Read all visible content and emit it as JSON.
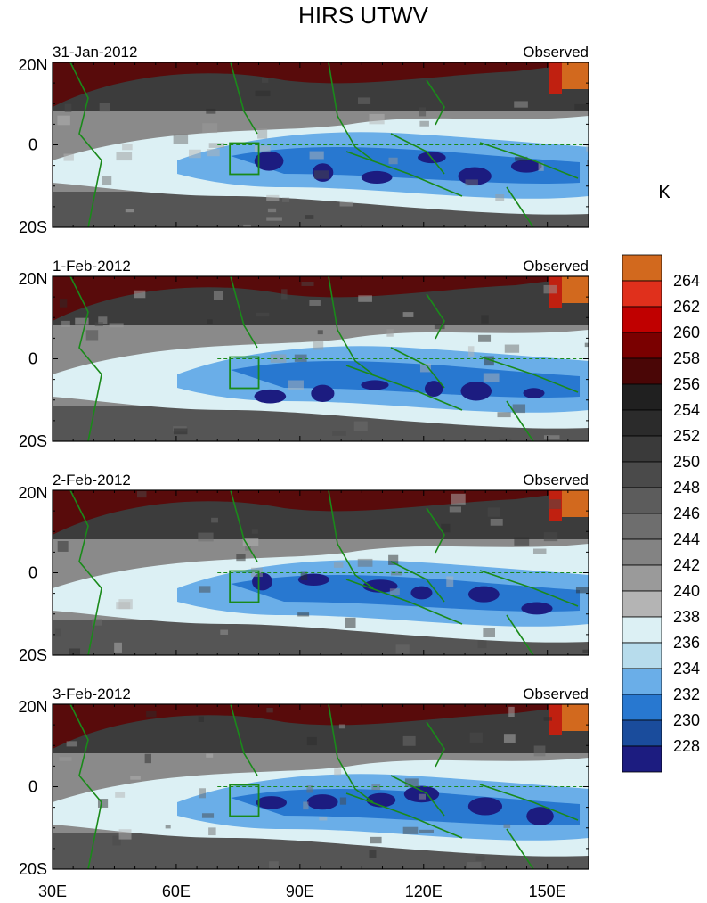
{
  "title": "HIRS UTWV",
  "panels": [
    {
      "date": "31-Jan-2012",
      "label": "Observed"
    },
    {
      "date": "1-Feb-2012",
      "label": "Observed"
    },
    {
      "date": "2-Feb-2012",
      "label": "Observed"
    },
    {
      "date": "3-Feb-2012",
      "label": "Observed"
    }
  ],
  "lat_ticks": [
    "20N",
    "0",
    "20S"
  ],
  "lon_ticks": [
    "30E",
    "60E",
    "90E",
    "120E",
    "150E"
  ],
  "colorbar": {
    "unit": "K",
    "levels": [
      "264",
      "262",
      "260",
      "258",
      "256",
      "254",
      "252",
      "250",
      "248",
      "246",
      "244",
      "242",
      "240",
      "238",
      "236",
      "234",
      "232",
      "230",
      "228"
    ],
    "colors": [
      "#d2691e",
      "#e0301c",
      "#c00000",
      "#7a0000",
      "#4a0606",
      "#202020",
      "#2b2b2b",
      "#3a3a3a",
      "#4a4a4a",
      "#5c5c5c",
      "#6e6e6e",
      "#838383",
      "#9a9a9a",
      "#b4b4b4",
      "#dcf0f4",
      "#b7dcec",
      "#6aaee8",
      "#2878d0",
      "#1a4c9c",
      "#1c1c80"
    ]
  },
  "chart_data": {
    "type": "heatmap",
    "title": "HIRS UTWV",
    "unit": "K",
    "lon_range": [
      "30E",
      "160E"
    ],
    "lat_range": [
      "20S",
      "20N"
    ],
    "contour_levels": [
      228,
      230,
      232,
      234,
      236,
      238,
      240,
      242,
      244,
      246,
      248,
      250,
      252,
      254,
      256,
      258,
      260,
      262,
      264
    ],
    "panels": [
      "31-Jan-2012",
      "1-Feb-2012",
      "2-Feb-2012",
      "3-Feb-2012"
    ]
  }
}
